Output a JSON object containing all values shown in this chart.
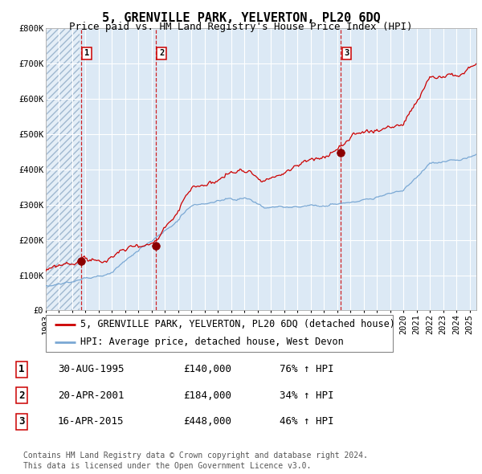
{
  "title": "5, GRENVILLE PARK, YELVERTON, PL20 6DQ",
  "subtitle": "Price paid vs. HM Land Registry's House Price Index (HPI)",
  "legend_line1": "5, GRENVILLE PARK, YELVERTON, PL20 6DQ (detached house)",
  "legend_line2": "HPI: Average price, detached house, West Devon",
  "sale_color": "#cc0000",
  "hpi_color": "#7aa8d4",
  "bg_color": "#dce9f5",
  "grid_color": "#ffffff",
  "dashed_line_color": "#cc0000",
  "ylim": [
    0,
    800000
  ],
  "yticks": [
    0,
    100000,
    200000,
    300000,
    400000,
    500000,
    600000,
    700000,
    800000
  ],
  "ytick_labels": [
    "£0",
    "£100K",
    "£200K",
    "£300K",
    "£400K",
    "£500K",
    "£600K",
    "£700K",
    "£800K"
  ],
  "xstart": 1993.0,
  "xend": 2025.5,
  "sales": [
    {
      "date": 1995.66,
      "price": 140000,
      "label": "1"
    },
    {
      "date": 2001.3,
      "price": 184000,
      "label": "2"
    },
    {
      "date": 2015.29,
      "price": 448000,
      "label": "3"
    }
  ],
  "table_rows": [
    {
      "num": "1",
      "date": "30-AUG-1995",
      "price": "£140,000",
      "change": "76% ↑ HPI"
    },
    {
      "num": "2",
      "date": "20-APR-2001",
      "price": "£184,000",
      "change": "34% ↑ HPI"
    },
    {
      "num": "3",
      "date": "16-APR-2015",
      "price": "£448,000",
      "change": "46% ↑ HPI"
    }
  ],
  "footer": "Contains HM Land Registry data © Crown copyright and database right 2024.\nThis data is licensed under the Open Government Licence v3.0.",
  "title_fontsize": 11,
  "subtitle_fontsize": 9,
  "tick_fontsize": 7.5,
  "legend_fontsize": 8.5,
  "table_fontsize": 9,
  "footer_fontsize": 7
}
